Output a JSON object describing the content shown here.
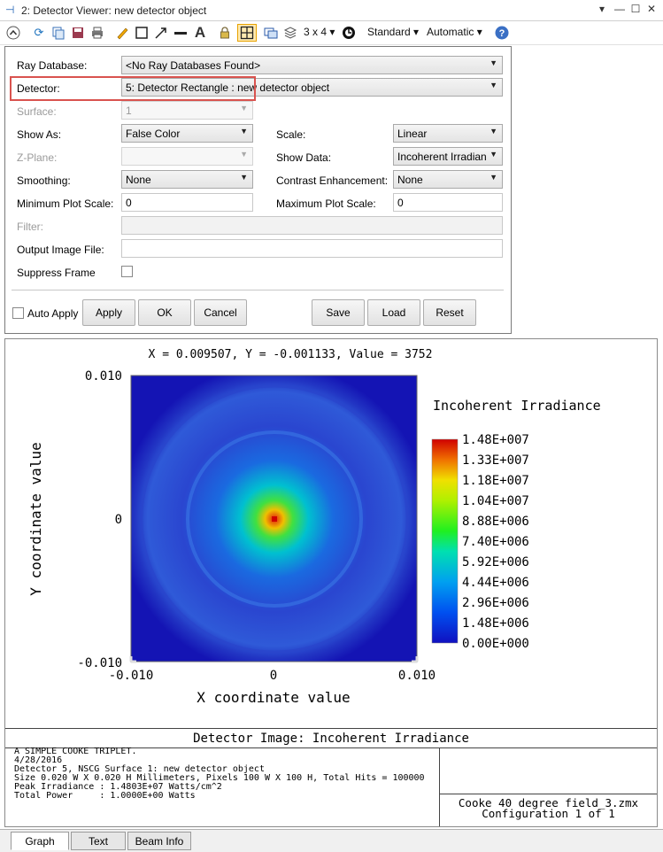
{
  "window": {
    "title": "2: Detector Viewer: new detector object",
    "pin_glyph": "⊣"
  },
  "toolbar": {
    "layout_label": "3 x 4 ▾",
    "standard_label": "Standard ▾",
    "automatic_label": "Automatic ▾"
  },
  "settings": {
    "ray_database": {
      "label": "Ray Database:",
      "value": "<No Ray Databases Found>"
    },
    "detector": {
      "label": "Detector:",
      "value": "5: Detector Rectangle : new detector object"
    },
    "surface": {
      "label": "Surface:",
      "value": "1"
    },
    "show_as": {
      "label": "Show As:",
      "value": "False Color"
    },
    "scale": {
      "label": "Scale:",
      "value": "Linear"
    },
    "z_plane": {
      "label": "Z-Plane:",
      "value": ""
    },
    "show_data": {
      "label": "Show Data:",
      "value": "Incoherent Irradian"
    },
    "smoothing": {
      "label": "Smoothing:",
      "value": "None"
    },
    "contrast": {
      "label": "Contrast Enhancement:",
      "value": "None"
    },
    "min_plot_scale": {
      "label": "Minimum Plot Scale:",
      "value": "0"
    },
    "max_plot_scale": {
      "label": "Maximum Plot Scale:",
      "value": "0"
    },
    "filter": {
      "label": "Filter:",
      "value": ""
    },
    "output_image_file": {
      "label": "Output Image File:",
      "value": ""
    },
    "suppress_frame": {
      "label": "Suppress Frame"
    },
    "auto_apply": {
      "label": "Auto Apply"
    },
    "buttons": {
      "apply": "Apply",
      "ok": "OK",
      "cancel": "Cancel",
      "save": "Save",
      "load": "Load",
      "reset": "Reset"
    }
  },
  "graph": {
    "readout": "X = 0.009507, Y = -0.001133, Value = 3752",
    "y_top_tick": "0.010",
    "y_mid_tick": "0",
    "y_bot_tick": "-0.010",
    "x_left_tick": "-0.010",
    "x_mid_tick": "0",
    "x_right_tick": "0.010",
    "xlabel": "X coordinate value",
    "ylabel": "Y coordinate value",
    "legend_title": "Incoherent Irradiance",
    "colorbar_ticks": [
      "1.48E+007",
      "1.33E+007",
      "1.18E+007",
      "1.04E+007",
      "8.88E+006",
      "7.40E+006",
      "5.92E+006",
      "4.44E+006",
      "2.96E+006",
      "1.48E+006",
      "0.00E+000"
    ],
    "footer_title": "Detector Image: Incoherent Irradiance",
    "info_lines": [
      "A SIMPLE COOKE TRIPLET.",
      "4/28/2016",
      "Detector 5, NSCG Surface 1: new detector object",
      "Size 0.020 W X 0.020 H Millimeters, Pixels 100 W X 100 H, Total Hits = 100000",
      "Peak Irradiance : 1.4803E+07 Watts/cm^2",
      "Total Power     : 1.0000E+00 Watts"
    ],
    "file_name": "Cooke 40 degree field_3.zmx",
    "configuration": "Configuration 1 of 1"
  },
  "tabs": [
    "Graph",
    "Text",
    "Beam Info"
  ],
  "colors": {
    "highlight": "#d9534f",
    "plot_background": "#1414b4"
  }
}
